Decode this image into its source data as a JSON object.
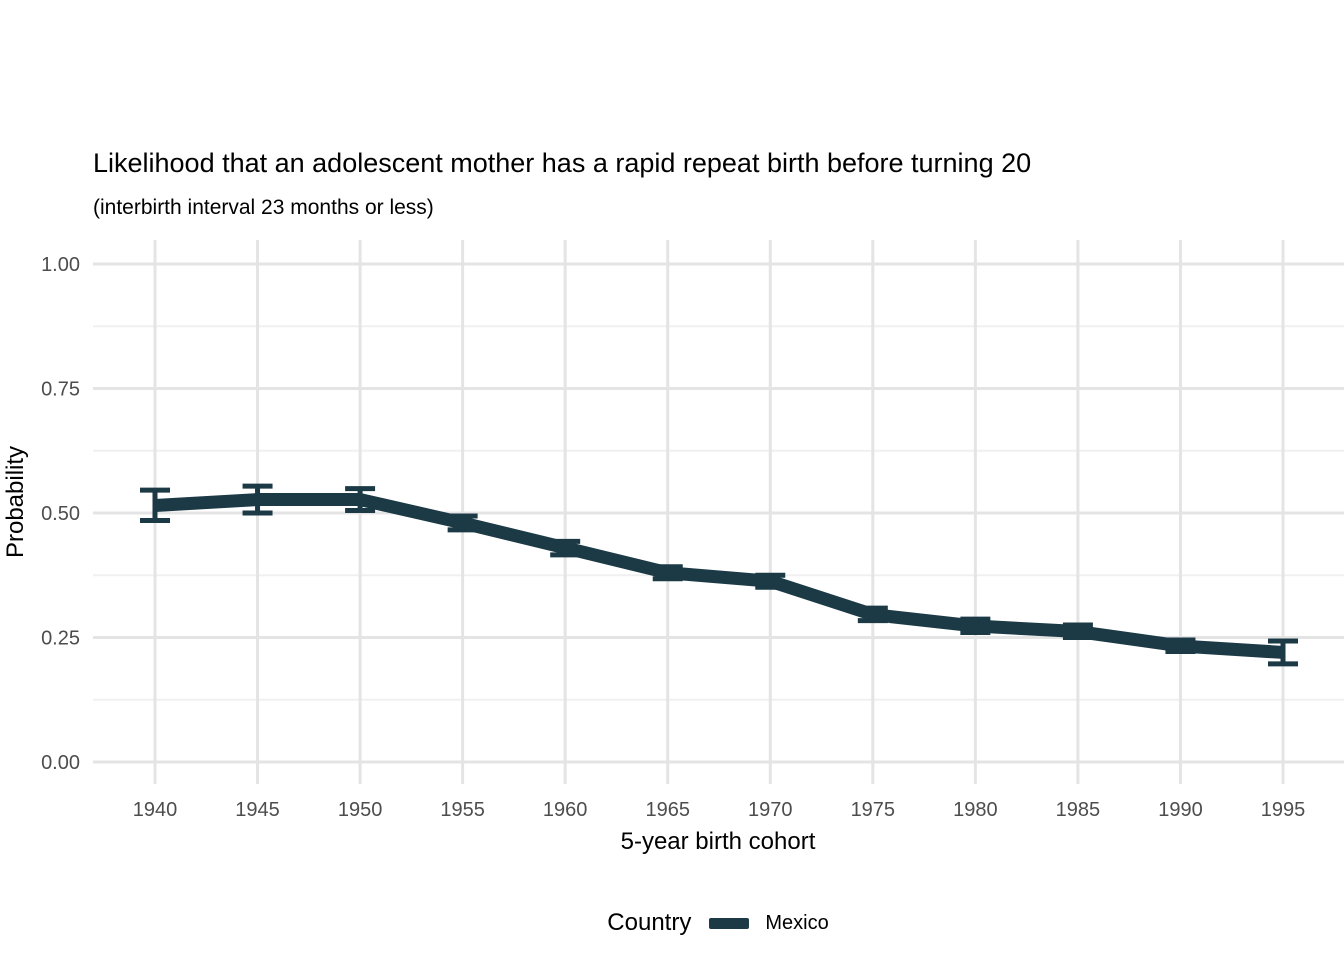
{
  "colors": {
    "background": "#ffffff",
    "line": "#1c3a46",
    "grid_major": "#e4e4e4",
    "grid_minor": "#f0f0f0",
    "tick_label": "#4d4d4d",
    "text": "#000000"
  },
  "chart_data": {
    "type": "line",
    "title": "Likelihood that an adolescent mother has a rapid repeat birth before turning 20",
    "subtitle": "(interbirth interval 23 months or less)",
    "xlabel": "5-year birth cohort",
    "ylabel": "Probability",
    "x": [
      1940,
      1945,
      1950,
      1955,
      1960,
      1965,
      1970,
      1975,
      1980,
      1985,
      1990,
      1995
    ],
    "xtick_labels": [
      "1940",
      "1945",
      "1950",
      "1955",
      "1960",
      "1965",
      "1970",
      "1975",
      "1980",
      "1985",
      "1990",
      "1995"
    ],
    "ylim": [
      0,
      1
    ],
    "yticks": [
      0,
      0.25,
      0.5,
      0.75,
      1
    ],
    "ytick_labels": [
      "0.00",
      "0.25",
      "0.50",
      "0.75",
      "1.00"
    ],
    "yticks_minor": [
      0.125,
      0.375,
      0.625,
      0.875
    ],
    "grid": "horizontal major+minor, vertical major only",
    "legend_title": "Country",
    "legend_position": "bottom",
    "error_bars": true,
    "series": [
      {
        "name": "Mexico",
        "color": "#1c3a46",
        "values": [
          0.515,
          0.527,
          0.527,
          0.48,
          0.43,
          0.38,
          0.363,
          0.296,
          0.273,
          0.262,
          0.233,
          0.22
        ],
        "ci_low": [
          0.485,
          0.5,
          0.505,
          0.466,
          0.416,
          0.368,
          0.351,
          0.284,
          0.26,
          0.25,
          0.222,
          0.197
        ],
        "ci_high": [
          0.546,
          0.554,
          0.549,
          0.494,
          0.443,
          0.392,
          0.375,
          0.309,
          0.287,
          0.275,
          0.245,
          0.243
        ]
      }
    ]
  }
}
